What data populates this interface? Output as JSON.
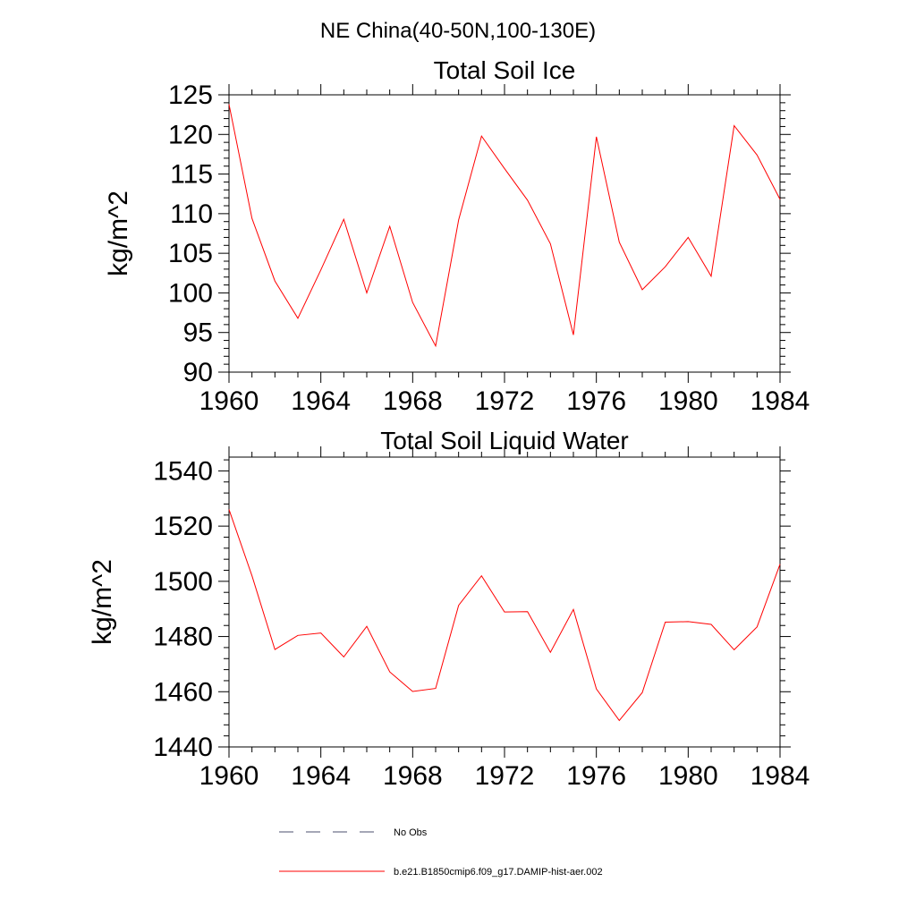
{
  "figure": {
    "title": "NE China(40-50N,100-130E)"
  },
  "chart_data": [
    {
      "type": "line",
      "title": "Total Soil Ice",
      "xlabel": "",
      "ylabel": "kg/m^2",
      "xlim": [
        1960,
        1984
      ],
      "ylim": [
        90,
        125
      ],
      "xticks": [
        1960,
        1964,
        1968,
        1972,
        1976,
        1980,
        1984
      ],
      "yticks": [
        90,
        95,
        100,
        105,
        110,
        115,
        120,
        125
      ],
      "grid": false,
      "x": [
        1960,
        1961,
        1962,
        1963,
        1964,
        1965,
        1966,
        1967,
        1968,
        1969,
        1970,
        1971,
        1972,
        1973,
        1974,
        1975,
        1976,
        1977,
        1978,
        1979,
        1980,
        1981,
        1982,
        1983,
        1984
      ],
      "series": [
        {
          "name": "b.e21.B1850cmip6.f09_g17.DAMIP-hist-aer.002",
          "color": "#ff0000",
          "values": [
            123.8,
            109.4,
            101.5,
            96.8,
            102.9,
            109.3,
            100.0,
            108.4,
            98.8,
            93.3,
            109.2,
            119.8,
            115.7,
            111.7,
            106.2,
            94.7,
            119.7,
            106.4,
            100.4,
            103.3,
            107.0,
            102.1,
            121.1,
            117.4,
            111.8
          ]
        }
      ]
    },
    {
      "type": "line",
      "title": "Total Soil Liquid Water",
      "xlabel": "",
      "ylabel": "kg/m^2",
      "xlim": [
        1960,
        1984
      ],
      "ylim": [
        1440,
        1545
      ],
      "xticks": [
        1960,
        1964,
        1968,
        1972,
        1976,
        1980,
        1984
      ],
      "yticks": [
        1440,
        1460,
        1480,
        1500,
        1520,
        1540
      ],
      "grid": false,
      "x": [
        1960,
        1961,
        1962,
        1963,
        1964,
        1965,
        1966,
        1967,
        1968,
        1969,
        1970,
        1971,
        1972,
        1973,
        1974,
        1975,
        1976,
        1977,
        1978,
        1979,
        1980,
        1981,
        1982,
        1983,
        1984
      ],
      "series": [
        {
          "name": "b.e21.B1850cmip6.f09_g17.DAMIP-hist-aer.002",
          "color": "#ff0000",
          "values": [
            1526.0,
            1502.0,
            1475.3,
            1480.4,
            1481.3,
            1472.6,
            1483.7,
            1467.2,
            1460.1,
            1461.2,
            1491.3,
            1502.0,
            1488.9,
            1489.0,
            1474.3,
            1489.8,
            1461.0,
            1449.6,
            1459.7,
            1485.2,
            1485.4,
            1484.4,
            1475.2,
            1483.5,
            1506.2
          ]
        }
      ]
    }
  ],
  "legend": [
    {
      "label": "No Obs",
      "style": "dashed",
      "color": "#4b4f6e"
    },
    {
      "label": "b.e21.B1850cmip6.f09_g17.DAMIP-hist-aer.002",
      "style": "solid",
      "color": "#ff0000"
    }
  ]
}
